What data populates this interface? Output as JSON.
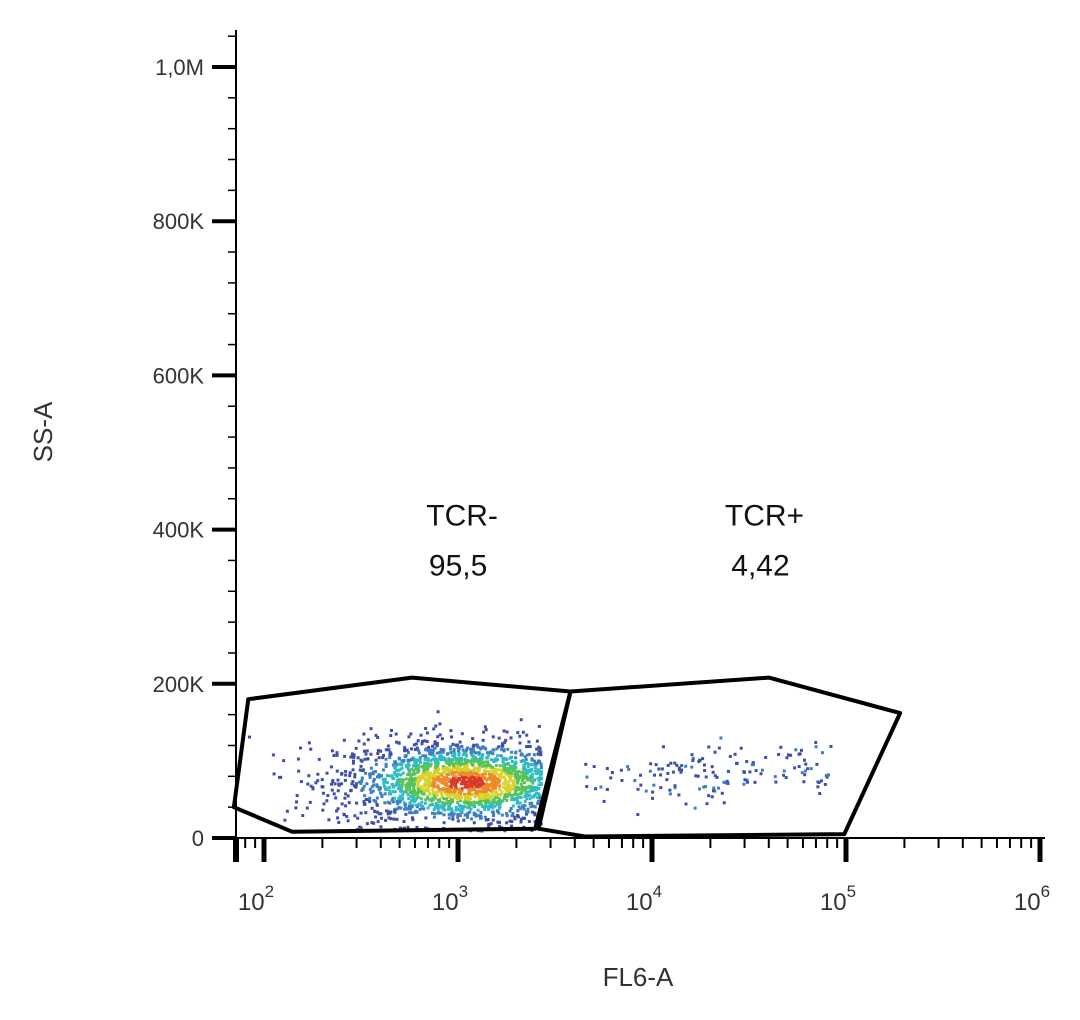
{
  "chart_data": {
    "type": "scatter",
    "subtype": "flow-cytometry-density-dot-plot",
    "xlabel": "FL6-A",
    "ylabel": "SS-A",
    "x_scale": "log",
    "xlim": [
      70,
      1100000
    ],
    "ylim": [
      0,
      1050000
    ],
    "x_ticks": [
      {
        "value": 100,
        "base": "10",
        "exp": "2"
      },
      {
        "value": 1000,
        "base": "10",
        "exp": "3"
      },
      {
        "value": 10000,
        "base": "10",
        "exp": "4"
      },
      {
        "value": 100000,
        "base": "10",
        "exp": "5"
      },
      {
        "value": 1000000,
        "base": "10",
        "exp": "6"
      }
    ],
    "y_ticks": [
      {
        "value": 0,
        "label": "0"
      },
      {
        "value": 200000,
        "label": "200K"
      },
      {
        "value": 400000,
        "label": "400K"
      },
      {
        "value": 600000,
        "label": "600K"
      },
      {
        "value": 800000,
        "label": "800K"
      },
      {
        "value": 1000000,
        "label": "1,0M"
      }
    ],
    "density_colors": [
      "#3f4fa8",
      "#3d7fc0",
      "#2fbcc4",
      "#56c35a",
      "#d8d22a",
      "#ee8a2a",
      "#d83a2a"
    ],
    "populations": [
      {
        "x_center": 1100,
        "x_sigma_log10": 0.33,
        "y_center": 72000,
        "y_sigma": 28000,
        "count": 2200,
        "x_min": 80,
        "x_max": 2700
      },
      {
        "x_center": 15000,
        "x_sigma_log10": 0.28,
        "y_center": 82000,
        "y_sigma": 20000,
        "count": 130,
        "x_min": 4500,
        "x_max": 40000
      },
      {
        "x_center": 65000,
        "x_sigma_log10": 0.12,
        "y_center": 88000,
        "y_sigma": 18000,
        "count": 45,
        "x_min": 40000,
        "x_max": 95000
      }
    ],
    "gates": [
      {
        "name": "TCR-",
        "value": "95,5",
        "label_at": [
          1050,
          400000
        ],
        "vertices": [
          [
            83,
            180000
          ],
          [
            580,
            208000
          ],
          [
            3800,
            190000
          ],
          [
            2500,
            12000
          ],
          [
            140,
            8000
          ],
          [
            70,
            40000
          ]
        ]
      },
      {
        "name": "TCR+",
        "value": "4,42",
        "label_at": [
          38000,
          400000
        ],
        "vertices": [
          [
            3800,
            190000
          ],
          [
            40000,
            208000
          ],
          [
            190000,
            162000
          ],
          [
            98000,
            5000
          ],
          [
            4500,
            2000
          ],
          [
            2600,
            12000
          ]
        ]
      }
    ]
  }
}
